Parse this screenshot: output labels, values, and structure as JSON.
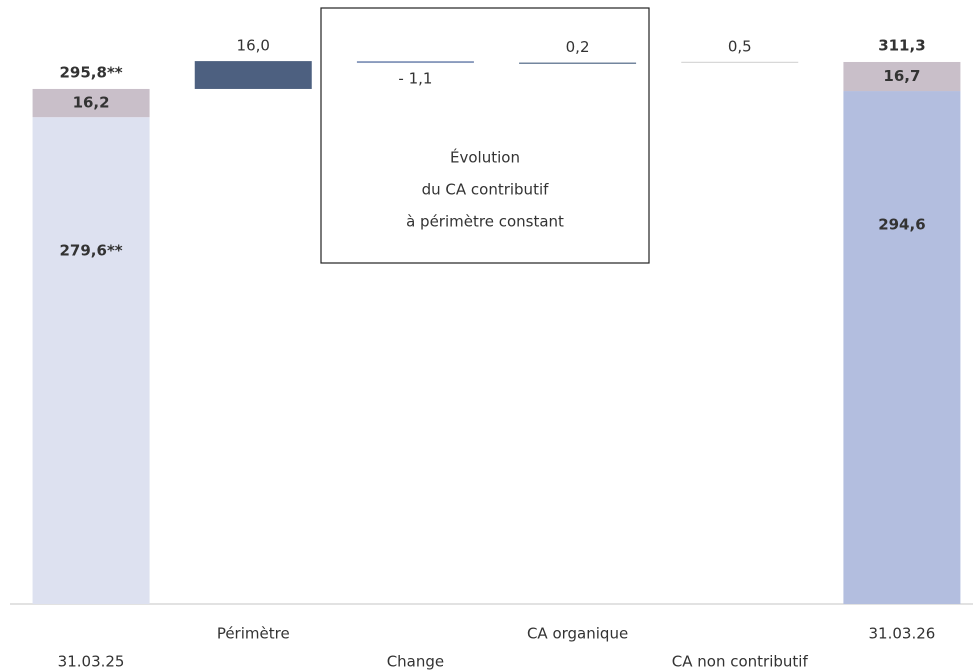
{
  "chart_data": {
    "type": "waterfall",
    "categories": [
      "31.03.25",
      "Périmètre",
      "Change",
      "CA organique",
      "CA non contributif",
      "31.03.26"
    ],
    "values": [
      279.6,
      16.0,
      -1.1,
      0.2,
      0.5,
      294.6
    ],
    "value_labels": [
      "279,6**",
      "16,0",
      "- 1,1",
      "0,2",
      "0,5",
      "294,6"
    ],
    "colors": [
      "#dde1f0",
      "#4d6080",
      "#8a9bbd",
      "#2e4a6e",
      "#cfcfcf",
      "#b3bedf"
    ],
    "stack_values": [
      16.2,
      null,
      null,
      null,
      null,
      16.7
    ],
    "stack_value_labels": [
      "16,2",
      null,
      null,
      null,
      null,
      "16,7"
    ],
    "stack_color": "#c9bfc9",
    "totals": [
      295.8,
      null,
      null,
      null,
      null,
      311.3
    ],
    "total_labels": [
      "295,8**",
      null,
      null,
      null,
      null,
      "311,3"
    ],
    "ylim": [
      0,
      340
    ],
    "annotation_lines": [
      "Évolution",
      "du CA contributif",
      "à périmètre constant"
    ]
  }
}
